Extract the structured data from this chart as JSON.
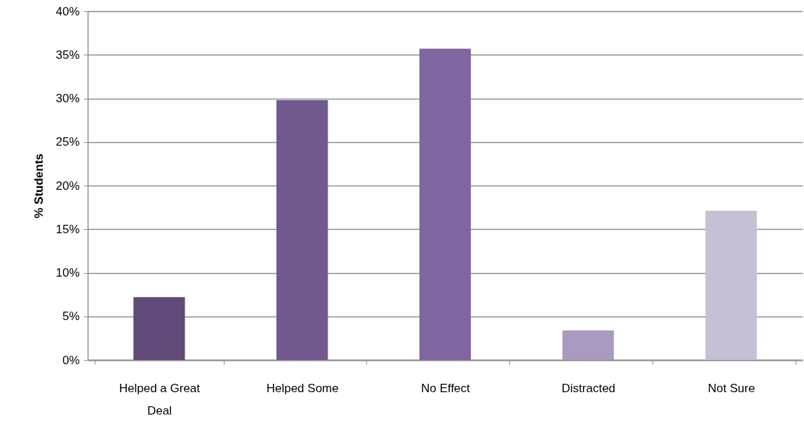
{
  "chart_data": {
    "type": "bar",
    "ylabel": "% Students",
    "categories": [
      "Helped a Great Deal",
      "Helped Some",
      "No Effect",
      "Distracted",
      "Not Sure"
    ],
    "values": [
      7.2,
      29.8,
      35.7,
      3.4,
      17.1
    ],
    "colors": [
      "#5f4a78",
      "#71598e",
      "#7f66a0",
      "#a99bbf",
      "#c7bfd6"
    ],
    "ylim": [
      0,
      40
    ],
    "yticks": [
      {
        "value": 0,
        "label": "0%"
      },
      {
        "value": 5,
        "label": "5%"
      },
      {
        "value": 10,
        "label": "10%"
      },
      {
        "value": 15,
        "label": "15%"
      },
      {
        "value": 20,
        "label": "20%"
      },
      {
        "value": 25,
        "label": "25%"
      },
      {
        "value": 30,
        "label": "30%"
      },
      {
        "value": 35,
        "label": "35%"
      },
      {
        "value": 40,
        "label": "40%"
      }
    ],
    "grid": "y"
  }
}
